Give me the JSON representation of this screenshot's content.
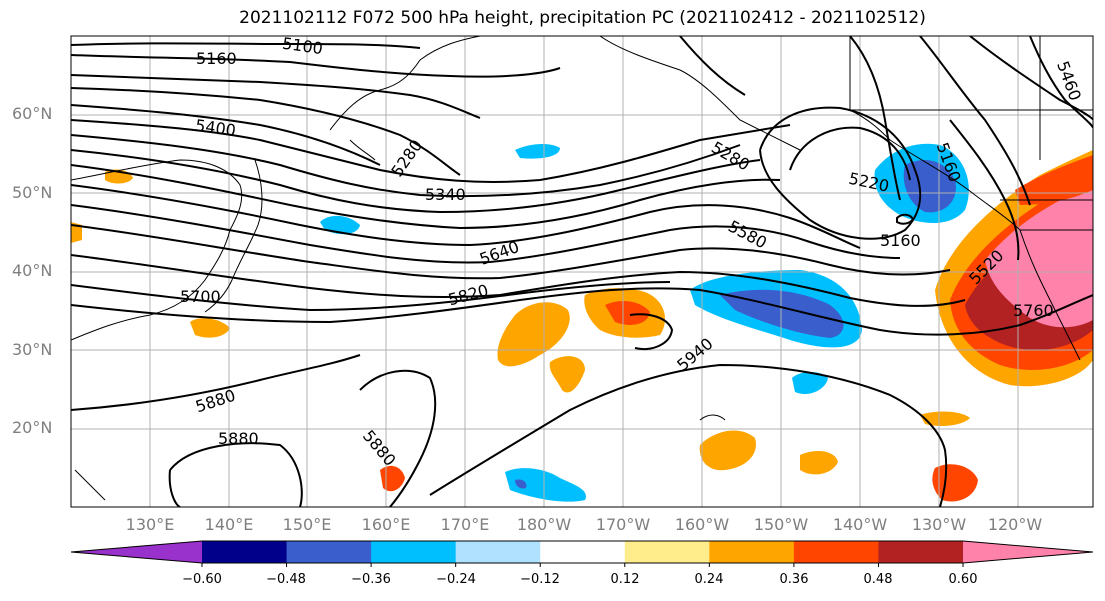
{
  "title": "2021102112 F072 500 hPa height, precipitation PC (2021102412 - 2021102512)",
  "lat_labels": [
    "60°N",
    "50°N",
    "40°N",
    "30°N",
    "20°N"
  ],
  "lon_labels": [
    "130°E",
    "140°E",
    "150°E",
    "160°E",
    "170°E",
    "180°W",
    "170°W",
    "160°W",
    "150°W",
    "140°W",
    "130°W",
    "120°W"
  ],
  "contour_labels": [
    "5100",
    "5160",
    "5400",
    "5280",
    "5340",
    "5640",
    "5820",
    "5700",
    "5880",
    "5880",
    "5880",
    "5940",
    "5280",
    "5220",
    "5160",
    "5580",
    "5520",
    "5760",
    "5460",
    "5160"
  ],
  "colorbar": {
    "colors": [
      "#9932cc",
      "#00008b",
      "#3a5fcd",
      "#00bfff",
      "#b0e2ff",
      "#ffffff",
      "#ffec8b",
      "#ffa500",
      "#ff4500",
      "#b22222",
      "#ff82ab"
    ],
    "ticks": [
      "−0.60",
      "−0.48",
      "−0.36",
      "−0.24",
      "−0.12",
      "0.12",
      "0.24",
      "0.36",
      "0.48",
      "0.60"
    ]
  },
  "map_colors": {
    "land": "#000000",
    "grid": "#b0b0b0"
  }
}
